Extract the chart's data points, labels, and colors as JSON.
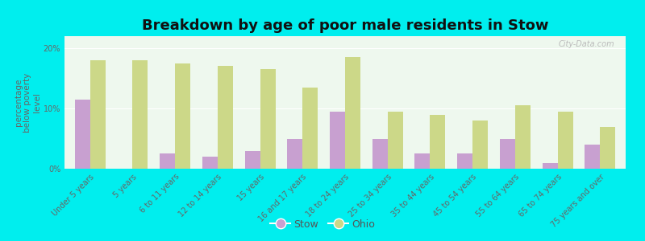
{
  "title": "Breakdown by age of poor male residents in Stow",
  "categories": [
    "Under 5 years",
    "5 years",
    "6 to 11 years",
    "12 to 14 years",
    "15 years",
    "16 and 17 years",
    "18 to 24 years",
    "25 to 34 years",
    "35 to 44 years",
    "45 to 54 years",
    "55 to 64 years",
    "65 to 74 years",
    "75 years and over"
  ],
  "stow_values": [
    11.5,
    0.0,
    2.5,
    2.0,
    3.0,
    5.0,
    9.5,
    5.0,
    2.5,
    2.5,
    5.0,
    1.0,
    4.0
  ],
  "ohio_values": [
    18.0,
    18.0,
    17.5,
    17.0,
    16.5,
    13.5,
    18.5,
    9.5,
    9.0,
    8.0,
    10.5,
    9.5,
    7.0
  ],
  "stow_color": "#c8a0d0",
  "ohio_color": "#ccd888",
  "fig_bg_color": "#00eeee",
  "plot_bg_color": "#eef8ee",
  "ylabel": "percentage\nbelow poverty\nlevel",
  "ylim": [
    0,
    22
  ],
  "yticks": [
    0,
    10,
    20
  ],
  "ytick_labels": [
    "0%",
    "10%",
    "20%"
  ],
  "bar_width": 0.36,
  "title_fontsize": 13,
  "tick_fontsize": 7,
  "ylabel_fontsize": 7.5,
  "legend_fontsize": 9,
  "watermark": "City-Data.com"
}
